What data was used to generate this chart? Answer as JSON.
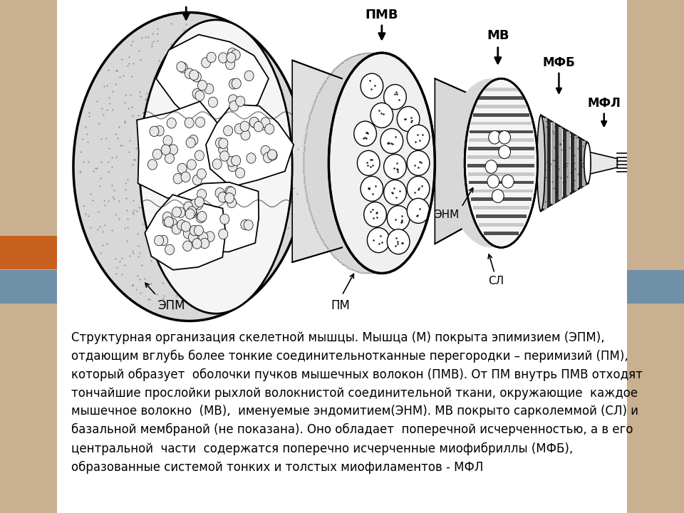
{
  "bg_color": "#ddd0b0",
  "text_color": "#000000",
  "description_text": "Структурная организация скелетной мышцы. Мышца (М) покрыта эпимизием (ЭПМ),\nотдающим вглубь более тонкие соединительнотканные перегородки – перимизий (ПМ),\nкоторый образует  оболочки пучков мышечных волокон (ПМВ). От ПМ внутрь ПМВ отходят\nтончайшие прослойки рыхлой волокнистой соединительной ткани, окружающие  каждое\nмышечное волокно  (МВ),  именуемые эндомитием(ЭНМ). МВ покрыто сарколеммой (СЛ) и\nбазальной мембраной (не показана). Оно обладает  поперечной исчерченностью, а в его\nцентральной  части  содержатся поперечно исчерченные миофибриллы (МФБ),\nобразованные системой тонких и толстых миофиламентов - МФЛ",
  "text_fontsize": 12.0,
  "label_fontsize": 12,
  "left_stripe_color": "#c8b090",
  "right_stripe_color": "#c8b090",
  "accent_orange": "#c86020",
  "accent_blue": "#7090a8",
  "white_panel": "#ffffff"
}
